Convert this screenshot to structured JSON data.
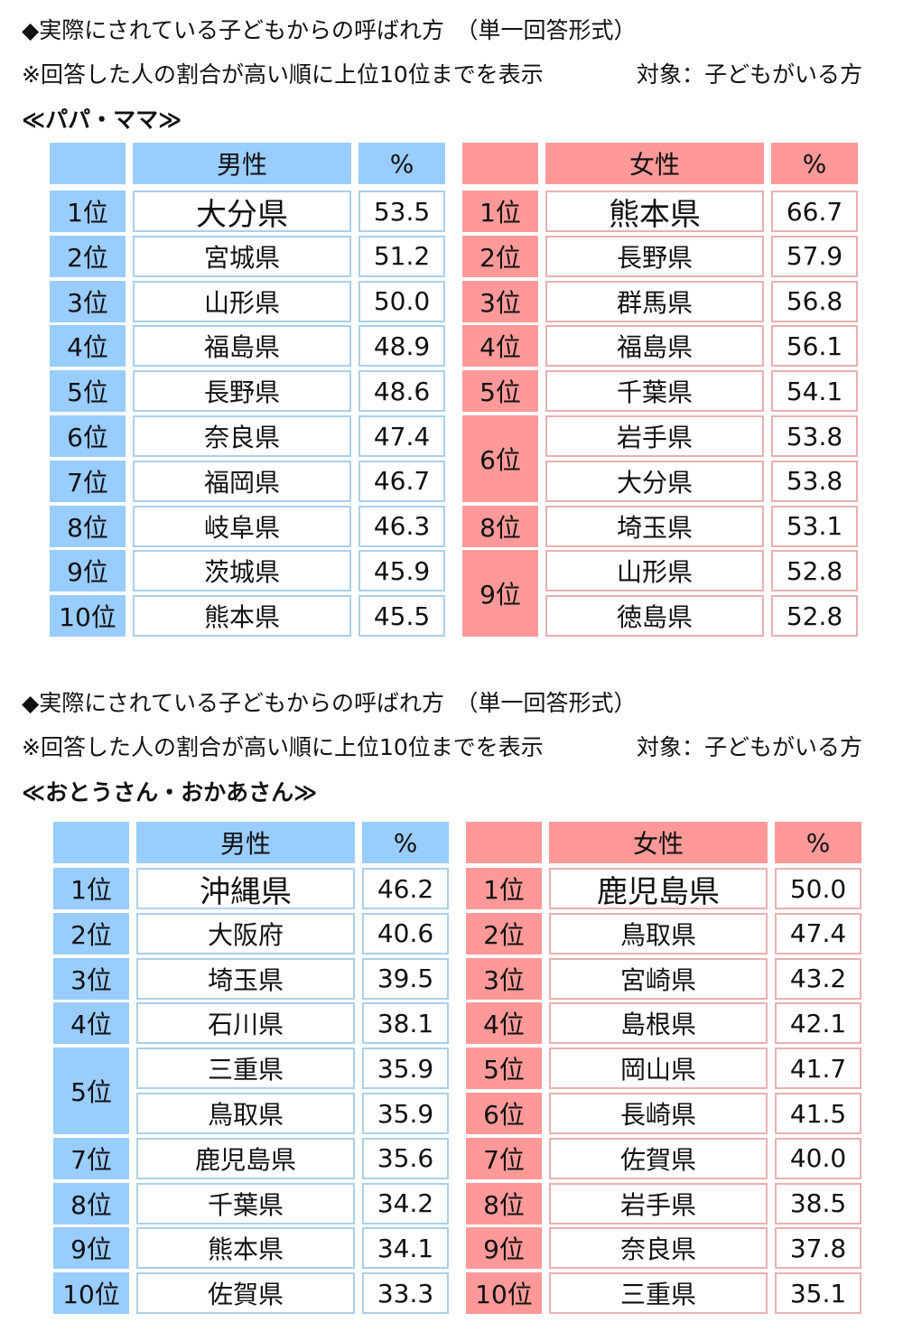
{
  "colors": {
    "male": "#99ccff",
    "female": "#ff9999"
  },
  "sections": [
    {
      "title": "◆実際にされている子どもからの呼ばれ方　（単一回答形式）",
      "note": "※回答した人の割合が高い順に上位10位までを表示",
      "target": "対象：子どもがいる方",
      "label": "≪パパ・ママ≫",
      "male": {
        "header": "男性",
        "pct_header": "%",
        "rows": [
          {
            "rank": "1位",
            "pref": "大分県",
            "pct": "53.5"
          },
          {
            "rank": "2位",
            "pref": "宮城県",
            "pct": "51.2"
          },
          {
            "rank": "3位",
            "pref": "山形県",
            "pct": "50.0"
          },
          {
            "rank": "4位",
            "pref": "福島県",
            "pct": "48.9"
          },
          {
            "rank": "5位",
            "pref": "長野県",
            "pct": "48.6"
          },
          {
            "rank": "6位",
            "pref": "奈良県",
            "pct": "47.4"
          },
          {
            "rank": "7位",
            "pref": "福岡県",
            "pct": "46.7"
          },
          {
            "rank": "8位",
            "pref": "岐阜県",
            "pct": "46.3"
          },
          {
            "rank": "9位",
            "pref": "茨城県",
            "pct": "45.9"
          },
          {
            "rank": "10位",
            "pref": "熊本県",
            "pct": "45.5"
          }
        ]
      },
      "female": {
        "header": "女性",
        "pct_header": "%",
        "rows": [
          {
            "rank": "1位",
            "pref": "熊本県",
            "pct": "66.7"
          },
          {
            "rank": "2位",
            "pref": "長野県",
            "pct": "57.9"
          },
          {
            "rank": "3位",
            "pref": "群馬県",
            "pct": "56.8"
          },
          {
            "rank": "4位",
            "pref": "福島県",
            "pct": "56.1"
          },
          {
            "rank": "5位",
            "pref": "千葉県",
            "pct": "54.1"
          },
          {
            "rank": "6位",
            "span": 2,
            "pref": "岩手県",
            "pct": "53.8"
          },
          {
            "rank": null,
            "pref": "大分県",
            "pct": "53.8"
          },
          {
            "rank": "8位",
            "pref": "埼玉県",
            "pct": "53.1"
          },
          {
            "rank": "9位",
            "span": 2,
            "pref": "山形県",
            "pct": "52.8"
          },
          {
            "rank": null,
            "pref": "徳島県",
            "pct": "52.8"
          }
        ]
      }
    },
    {
      "title": "◆実際にされている子どもからの呼ばれ方　（単一回答形式）",
      "note": "※回答した人の割合が高い順に上位10位までを表示",
      "target": "対象：子どもがいる方",
      "label": "≪おとうさん・おかあさん≫",
      "male": {
        "header": "男性",
        "pct_header": "%",
        "rows": [
          {
            "rank": "1位",
            "pref": "沖縄県",
            "pct": "46.2"
          },
          {
            "rank": "2位",
            "pref": "大阪府",
            "pct": "40.6"
          },
          {
            "rank": "3位",
            "pref": "埼玉県",
            "pct": "39.5"
          },
          {
            "rank": "4位",
            "pref": "石川県",
            "pct": "38.1"
          },
          {
            "rank": "5位",
            "span": 2,
            "pref": "三重県",
            "pct": "35.9"
          },
          {
            "rank": null,
            "pref": "鳥取県",
            "pct": "35.9"
          },
          {
            "rank": "7位",
            "pref": "鹿児島県",
            "pct": "35.6"
          },
          {
            "rank": "8位",
            "pref": "千葉県",
            "pct": "34.2"
          },
          {
            "rank": "9位",
            "pref": "熊本県",
            "pct": "34.1"
          },
          {
            "rank": "10位",
            "pref": "佐賀県",
            "pct": "33.3"
          }
        ]
      },
      "female": {
        "header": "女性",
        "pct_header": "%",
        "rows": [
          {
            "rank": "1位",
            "pref": "鹿児島県",
            "pct": "50.0"
          },
          {
            "rank": "2位",
            "pref": "鳥取県",
            "pct": "47.4"
          },
          {
            "rank": "3位",
            "pref": "宮崎県",
            "pct": "43.2"
          },
          {
            "rank": "4位",
            "pref": "島根県",
            "pct": "42.1"
          },
          {
            "rank": "5位",
            "pref": "岡山県",
            "pct": "41.7"
          },
          {
            "rank": "6位",
            "pref": "長崎県",
            "pct": "41.5"
          },
          {
            "rank": "7位",
            "pref": "佐賀県",
            "pct": "40.0"
          },
          {
            "rank": "8位",
            "pref": "岩手県",
            "pct": "38.5"
          },
          {
            "rank": "9位",
            "pref": "奈良県",
            "pct": "37.8"
          },
          {
            "rank": "10位",
            "pref": "三重県",
            "pct": "35.1"
          }
        ]
      }
    }
  ]
}
